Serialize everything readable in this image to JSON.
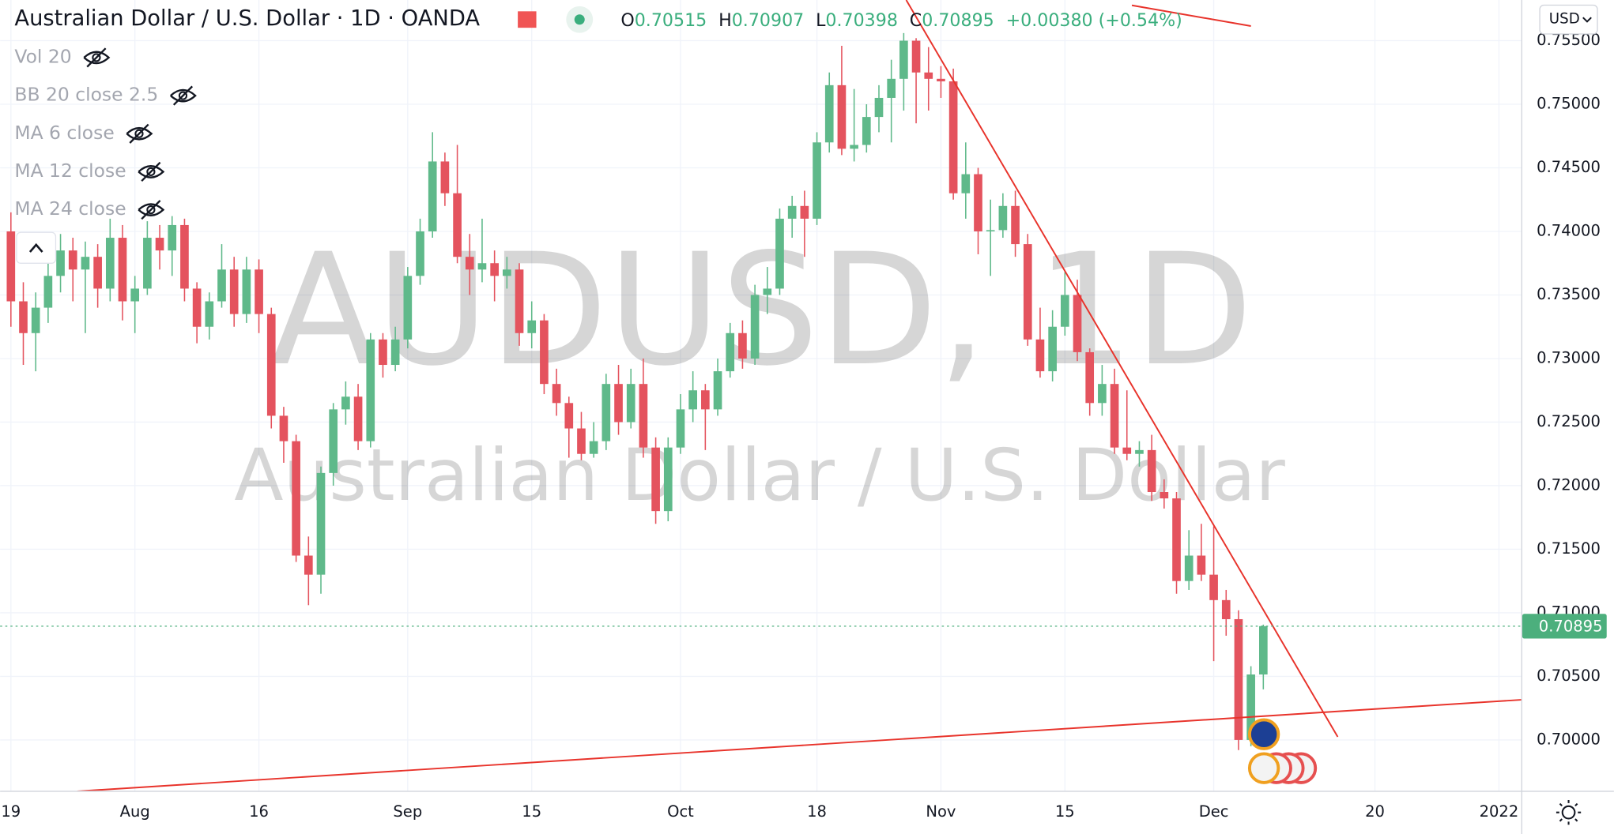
{
  "header": {
    "title": "Australian Dollar / U.S. Dollar · 1D · OANDA",
    "ohlc_letters": [
      "O",
      "H",
      "L",
      "C"
    ],
    "change": "+0.00380 (+0.54%)",
    "currency": "USD"
  },
  "indicators": [
    "Vol 20",
    "BB 20 close 2.5",
    "MA 6 close",
    "MA 12 close",
    "MA 24 close"
  ],
  "watermark": {
    "symbol": "AUDUSD, 1D",
    "description": "Australian Dollar / U.S. Dollar"
  },
  "chart_data": {
    "type": "candlestick",
    "up_color": "#5fb98a",
    "down_color": "#e4535e",
    "grid": true,
    "ohlc": [
      [
        0.74,
        0.7415,
        0.7325,
        0.7345
      ],
      [
        0.7345,
        0.736,
        0.7295,
        0.732
      ],
      [
        0.732,
        0.7352,
        0.729,
        0.734
      ],
      [
        0.734,
        0.7378,
        0.7328,
        0.7365
      ],
      [
        0.7365,
        0.7398,
        0.7352,
        0.7385
      ],
      [
        0.7385,
        0.7395,
        0.7345,
        0.737
      ],
      [
        0.737,
        0.7392,
        0.732,
        0.738
      ],
      [
        0.738,
        0.739,
        0.734,
        0.7355
      ],
      [
        0.7355,
        0.741,
        0.7345,
        0.7395
      ],
      [
        0.7395,
        0.7405,
        0.733,
        0.7345
      ],
      [
        0.7345,
        0.7365,
        0.732,
        0.7355
      ],
      [
        0.7355,
        0.7408,
        0.735,
        0.7395
      ],
      [
        0.7395,
        0.7405,
        0.737,
        0.7385
      ],
      [
        0.7385,
        0.7412,
        0.7365,
        0.7405
      ],
      [
        0.7405,
        0.741,
        0.7345,
        0.7355
      ],
      [
        0.7355,
        0.736,
        0.7312,
        0.7325
      ],
      [
        0.7325,
        0.7352,
        0.7315,
        0.7345
      ],
      [
        0.7345,
        0.739,
        0.734,
        0.737
      ],
      [
        0.737,
        0.738,
        0.7325,
        0.7335
      ],
      [
        0.7335,
        0.738,
        0.7328,
        0.737
      ],
      [
        0.737,
        0.7378,
        0.732,
        0.7335
      ],
      [
        0.7335,
        0.734,
        0.7245,
        0.7255
      ],
      [
        0.7255,
        0.7262,
        0.7218,
        0.7235
      ],
      [
        0.7235,
        0.724,
        0.714,
        0.7145
      ],
      [
        0.7145,
        0.716,
        0.7106,
        0.713
      ],
      [
        0.713,
        0.7215,
        0.7115,
        0.721
      ],
      [
        0.721,
        0.7265,
        0.72,
        0.726
      ],
      [
        0.726,
        0.7282,
        0.7248,
        0.727
      ],
      [
        0.727,
        0.728,
        0.7228,
        0.7235
      ],
      [
        0.7235,
        0.732,
        0.723,
        0.7315
      ],
      [
        0.7315,
        0.732,
        0.7285,
        0.7295
      ],
      [
        0.7295,
        0.7325,
        0.729,
        0.7315
      ],
      [
        0.7315,
        0.7372,
        0.7308,
        0.7365
      ],
      [
        0.7365,
        0.741,
        0.7358,
        0.74
      ],
      [
        0.74,
        0.7478,
        0.7395,
        0.7455
      ],
      [
        0.7455,
        0.7462,
        0.742,
        0.743
      ],
      [
        0.743,
        0.7468,
        0.7375,
        0.738
      ],
      [
        0.738,
        0.7398,
        0.735,
        0.737
      ],
      [
        0.737,
        0.741,
        0.736,
        0.7375
      ],
      [
        0.7375,
        0.7385,
        0.7345,
        0.7365
      ],
      [
        0.7365,
        0.738,
        0.7355,
        0.737
      ],
      [
        0.737,
        0.7375,
        0.731,
        0.732
      ],
      [
        0.732,
        0.7345,
        0.7308,
        0.733
      ],
      [
        0.733,
        0.7335,
        0.7272,
        0.728
      ],
      [
        0.728,
        0.7292,
        0.7255,
        0.7265
      ],
      [
        0.7265,
        0.727,
        0.7222,
        0.7245
      ],
      [
        0.7245,
        0.7258,
        0.722,
        0.7225
      ],
      [
        0.7225,
        0.725,
        0.7222,
        0.7235
      ],
      [
        0.7235,
        0.7288,
        0.7228,
        0.728
      ],
      [
        0.728,
        0.7295,
        0.724,
        0.725
      ],
      [
        0.725,
        0.7292,
        0.7245,
        0.728
      ],
      [
        0.728,
        0.73,
        0.7222,
        0.723
      ],
      [
        0.723,
        0.7238,
        0.717,
        0.718
      ],
      [
        0.718,
        0.7238,
        0.7172,
        0.723
      ],
      [
        0.723,
        0.7272,
        0.7225,
        0.726
      ],
      [
        0.726,
        0.729,
        0.725,
        0.7275
      ],
      [
        0.7275,
        0.728,
        0.7228,
        0.726
      ],
      [
        0.726,
        0.73,
        0.7255,
        0.729
      ],
      [
        0.729,
        0.7328,
        0.7285,
        0.732
      ],
      [
        0.732,
        0.733,
        0.7292,
        0.73
      ],
      [
        0.73,
        0.7358,
        0.7295,
        0.735
      ],
      [
        0.735,
        0.7372,
        0.7335,
        0.7355
      ],
      [
        0.7355,
        0.7418,
        0.735,
        0.741
      ],
      [
        0.741,
        0.7428,
        0.7395,
        0.742
      ],
      [
        0.742,
        0.7432,
        0.738,
        0.741
      ],
      [
        0.741,
        0.7478,
        0.7405,
        0.747
      ],
      [
        0.747,
        0.7525,
        0.7462,
        0.7515
      ],
      [
        0.7515,
        0.7546,
        0.746,
        0.7465
      ],
      [
        0.7465,
        0.7512,
        0.7455,
        0.7468
      ],
      [
        0.7468,
        0.75,
        0.7462,
        0.749
      ],
      [
        0.749,
        0.7515,
        0.7478,
        0.7505
      ],
      [
        0.7505,
        0.7535,
        0.747,
        0.752
      ],
      [
        0.752,
        0.7556,
        0.7495,
        0.755
      ],
      [
        0.755,
        0.7552,
        0.7485,
        0.7525
      ],
      [
        0.7525,
        0.7545,
        0.7495,
        0.752
      ],
      [
        0.752,
        0.753,
        0.7505,
        0.7518
      ],
      [
        0.7518,
        0.7528,
        0.7425,
        0.743
      ],
      [
        0.743,
        0.747,
        0.741,
        0.7445
      ],
      [
        0.7445,
        0.745,
        0.7382,
        0.74
      ],
      [
        0.74,
        0.7425,
        0.7365,
        0.7401
      ],
      [
        0.7401,
        0.743,
        0.7395,
        0.742
      ],
      [
        0.742,
        0.7432,
        0.738,
        0.739
      ],
      [
        0.739,
        0.7398,
        0.731,
        0.7315
      ],
      [
        0.7315,
        0.734,
        0.7285,
        0.729
      ],
      [
        0.729,
        0.7338,
        0.7282,
        0.7325
      ],
      [
        0.7325,
        0.7368,
        0.7318,
        0.735
      ],
      [
        0.735,
        0.7362,
        0.7298,
        0.7305
      ],
      [
        0.7305,
        0.7308,
        0.7255,
        0.7265
      ],
      [
        0.7265,
        0.7295,
        0.7255,
        0.728
      ],
      [
        0.728,
        0.7292,
        0.7225,
        0.723
      ],
      [
        0.723,
        0.7275,
        0.722,
        0.7225
      ],
      [
        0.7225,
        0.7235,
        0.7215,
        0.7228
      ],
      [
        0.7228,
        0.724,
        0.7188,
        0.7195
      ],
      [
        0.7195,
        0.7205,
        0.7182,
        0.719
      ],
      [
        0.719,
        0.7195,
        0.7115,
        0.7125
      ],
      [
        0.7125,
        0.7165,
        0.7118,
        0.7145
      ],
      [
        0.7145,
        0.717,
        0.7125,
        0.713
      ],
      [
        0.713,
        0.7168,
        0.7062,
        0.711
      ],
      [
        0.711,
        0.7118,
        0.7082,
        0.7095
      ],
      [
        0.7095,
        0.7102,
        0.6992,
        0.7
      ],
      [
        0.7,
        0.7058,
        0.6995,
        0.70515
      ],
      [
        0.70515,
        0.70907,
        0.70398,
        0.70895
      ]
    ],
    "xlim": [
      -0.87,
      121.8
    ],
    "xticks": [
      {
        "value": 0,
        "label": "19"
      },
      {
        "value": 10,
        "label": "Aug"
      },
      {
        "value": 20,
        "label": "16"
      },
      {
        "value": 32,
        "label": "Sep"
      },
      {
        "value": 42,
        "label": "15"
      },
      {
        "value": 54,
        "label": "Oct"
      },
      {
        "value": 65,
        "label": "18"
      },
      {
        "value": 75,
        "label": "Nov"
      },
      {
        "value": 85,
        "label": "15"
      },
      {
        "value": 97,
        "label": "Dec"
      },
      {
        "value": 110,
        "label": "20"
      },
      {
        "value": 120,
        "label": "2022"
      }
    ],
    "ylim": [
      0.696,
      0.7582
    ],
    "yticks": [
      {
        "value": 0.7,
        "label": "0.70000"
      },
      {
        "value": 0.705,
        "label": "0.70500"
      },
      {
        "value": 0.71,
        "label": "0.71000"
      },
      {
        "value": 0.715,
        "label": "0.71500"
      },
      {
        "value": 0.72,
        "label": "0.72000"
      },
      {
        "value": 0.725,
        "label": "0.72500"
      },
      {
        "value": 0.73,
        "label": "0.73000"
      },
      {
        "value": 0.735,
        "label": "0.73500"
      },
      {
        "value": 0.74,
        "label": "0.74000"
      },
      {
        "value": 0.745,
        "label": "0.74500"
      },
      {
        "value": 0.75,
        "label": "0.75000"
      },
      {
        "value": 0.755,
        "label": "0.75500"
      }
    ],
    "trendline_color": "#e8332b",
    "trendlines": [
      {
        "x": [
          72.2,
          107.0
        ],
        "y": [
          0.7582,
          0.70024
        ]
      },
      {
        "x": [
          5.35,
          121.8
        ],
        "y": [
          0.69596,
          0.70316
        ]
      },
      {
        "x": [
          90.4,
          100.0
        ],
        "y": [
          0.75778,
          0.75615
        ]
      }
    ]
  }
}
